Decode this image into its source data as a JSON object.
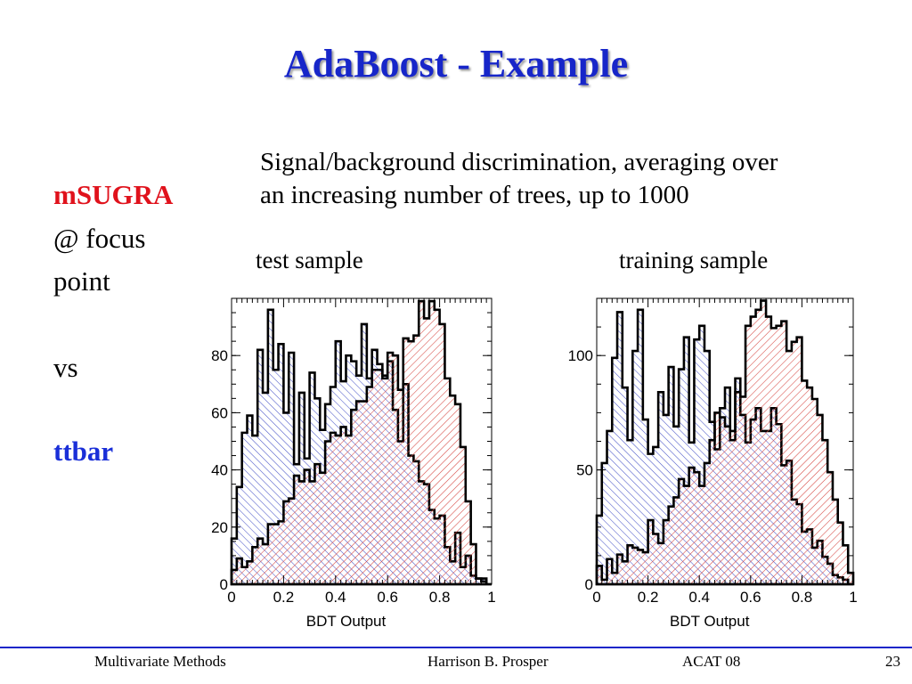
{
  "slide": {
    "title": "AdaBoost - Example",
    "subtitle_line1": "Signal/background discrimination, averaging over",
    "subtitle_line2": "an increasing number of trees, up to 1000",
    "left_label_1": "mSUGRA",
    "left_label_2": "@ focus",
    "left_label_3": "point",
    "left_label_4": "vs",
    "left_label_5": "ttbar",
    "plot_label_test": "test sample",
    "plot_label_train": "training sample"
  },
  "footer": {
    "left": "Multivariate Methods",
    "center": "Harrison B. Prosper",
    "right": "ACAT 08",
    "page": "23"
  },
  "colors": {
    "title": "#1726c9",
    "signal_red": "#e0121c",
    "background_blue": "#1a2fd8",
    "red_hatch": "#d6453f",
    "blue_hatch": "#4a56c8"
  },
  "chart_data": [
    {
      "type": "histogram",
      "title": "test sample",
      "xlabel": "BDT Output",
      "xlim": [
        0,
        1
      ],
      "ylim": [
        0,
        100
      ],
      "xticks": [
        0,
        0.2,
        0.4,
        0.6,
        0.8,
        1
      ],
      "xtick_labels": [
        "0",
        "0.2",
        "0.4",
        "0.6",
        "0.8",
        "1"
      ],
      "yticks": [
        0,
        20,
        40,
        60,
        80
      ],
      "ytick_labels": [
        "0",
        "20",
        "40",
        "60",
        "80"
      ],
      "bins": 50,
      "series": [
        {
          "values": [
            16,
            34,
            53,
            59,
            52,
            82,
            67,
            96,
            75,
            84,
            60,
            81,
            42,
            67,
            44,
            74,
            65,
            54,
            63,
            69,
            85,
            71,
            80,
            78,
            73,
            91,
            72,
            82,
            77,
            73,
            78,
            61,
            50,
            70,
            45,
            43,
            36,
            35,
            26,
            23,
            24,
            13,
            8,
            18,
            6,
            10,
            3,
            2,
            2,
            0
          ]
        },
        {
          "values": [
            5,
            9,
            6,
            8,
            13,
            16,
            14,
            21,
            21,
            22,
            29,
            30,
            38,
            36,
            40,
            36,
            42,
            39,
            50,
            53,
            52,
            55,
            52,
            61,
            64,
            64,
            69,
            75,
            75,
            72,
            81,
            80,
            68,
            86,
            85,
            87,
            99,
            93,
            99,
            96,
            91,
            72,
            66,
            63,
            48,
            29,
            14,
            2,
            1,
            0
          ]
        }
      ]
    },
    {
      "type": "histogram",
      "title": "training sample",
      "xlabel": "BDT Output",
      "xlim": [
        0,
        1
      ],
      "ylim": [
        0,
        125
      ],
      "xticks": [
        0,
        0.2,
        0.4,
        0.6,
        0.8,
        1
      ],
      "xtick_labels": [
        "0",
        "0.2",
        "0.4",
        "0.6",
        "0.8",
        "1"
      ],
      "yticks": [
        0,
        50,
        100
      ],
      "ytick_labels": [
        "0",
        "50",
        "100"
      ],
      "bins": 50,
      "series": [
        {
          "values": [
            30,
            53,
            67,
            99,
            119,
            86,
            63,
            102,
            120,
            72,
            57,
            60,
            84,
            74,
            95,
            69,
            94,
            108,
            62,
            107,
            113,
            102,
            71,
            59,
            77,
            86,
            63,
            90,
            74,
            62,
            72,
            77,
            67,
            67,
            77,
            70,
            52,
            54,
            37,
            35,
            23,
            24,
            16,
            19,
            12,
            9,
            4,
            3,
            2,
            0
          ]
        },
        {
          "values": [
            8,
            2,
            11,
            5,
            13,
            10,
            17,
            16,
            15,
            14,
            28,
            22,
            18,
            28,
            34,
            38,
            46,
            43,
            51,
            49,
            43,
            53,
            63,
            75,
            73,
            69,
            67,
            84,
            82,
            113,
            117,
            120,
            124,
            117,
            112,
            113,
            115,
            102,
            106,
            108,
            89,
            86,
            81,
            74,
            63,
            49,
            37,
            27,
            17,
            5
          ]
        }
      ]
    }
  ]
}
